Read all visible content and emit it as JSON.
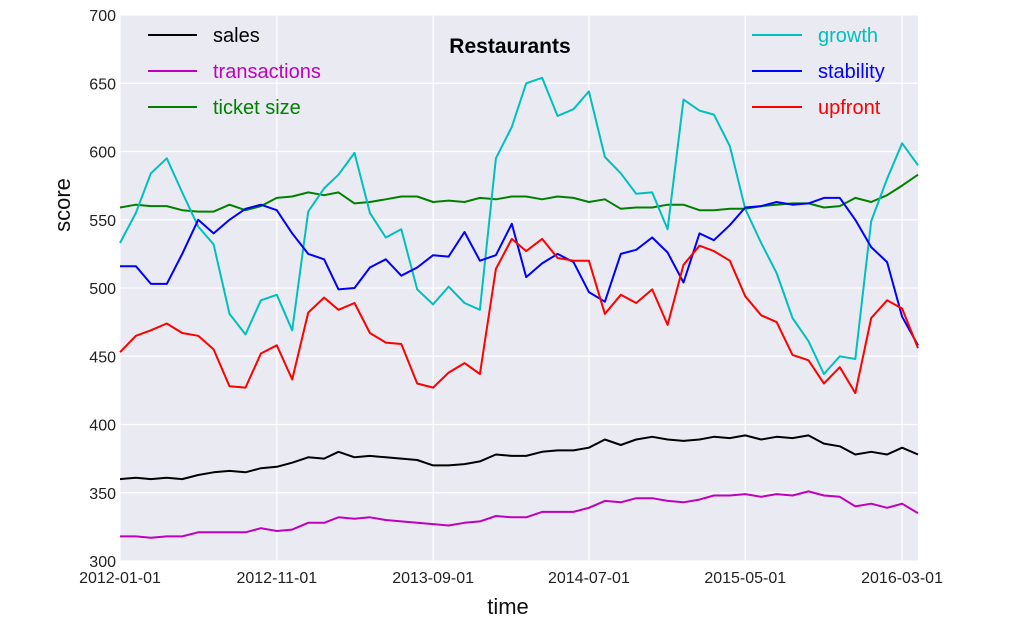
{
  "chart_data": {
    "type": "line",
    "title": "Restaurants",
    "xlabel": "time",
    "ylabel": "score",
    "ylim": [
      300,
      700
    ],
    "yticks": [
      300,
      350,
      400,
      450,
      500,
      550,
      600,
      650,
      700
    ],
    "xticks": [
      "2012-01-01",
      "2012-11-01",
      "2013-09-01",
      "2014-07-01",
      "2015-05-01",
      "2016-03-01"
    ],
    "xlim": [
      "2012-01-01",
      "2016-04-01"
    ],
    "grid": true,
    "background": "#eaeaf2",
    "legend_left": [
      "sales",
      "transactions",
      "ticket size"
    ],
    "legend_right": [
      "growth",
      "stability",
      "upfront"
    ],
    "series": [
      {
        "name": "sales",
        "color": "#000000",
        "x": [
          "2012-01-01",
          "2012-02-01",
          "2012-03-01",
          "2012-04-01",
          "2012-05-01",
          "2012-06-01",
          "2012-07-01",
          "2012-08-01",
          "2012-09-01",
          "2012-10-01",
          "2012-11-01",
          "2012-12-01",
          "2013-01-01",
          "2013-02-01",
          "2013-03-01",
          "2013-04-01",
          "2013-05-01",
          "2013-06-01",
          "2013-07-01",
          "2013-08-01",
          "2013-09-01",
          "2013-10-01",
          "2013-11-01",
          "2013-12-01",
          "2014-01-01",
          "2014-02-01",
          "2014-03-01",
          "2014-04-01",
          "2014-05-01",
          "2014-06-01",
          "2014-07-01",
          "2014-08-01",
          "2014-09-01",
          "2014-10-01",
          "2014-11-01",
          "2014-12-01",
          "2015-01-01",
          "2015-02-01",
          "2015-03-01",
          "2015-04-01",
          "2015-05-01",
          "2015-06-01",
          "2015-07-01",
          "2015-08-01",
          "2015-09-01",
          "2015-10-01",
          "2015-11-01",
          "2015-12-01",
          "2016-01-01",
          "2016-02-01",
          "2016-03-01",
          "2016-04-01"
        ],
        "values": [
          360,
          361,
          360,
          361,
          360,
          363,
          365,
          366,
          365,
          368,
          369,
          372,
          376,
          375,
          380,
          376,
          377,
          376,
          375,
          374,
          370,
          370,
          371,
          373,
          378,
          377,
          377,
          380,
          381,
          381,
          383,
          389,
          385,
          389,
          391,
          389,
          388,
          389,
          391,
          390,
          392,
          389,
          391,
          390,
          392,
          386,
          384,
          378,
          380,
          378,
          383,
          378
        ]
      },
      {
        "name": "transactions",
        "color": "#bf00bf",
        "x": [
          "2012-01-01",
          "2012-02-01",
          "2012-03-01",
          "2012-04-01",
          "2012-05-01",
          "2012-06-01",
          "2012-07-01",
          "2012-08-01",
          "2012-09-01",
          "2012-10-01",
          "2012-11-01",
          "2012-12-01",
          "2013-01-01",
          "2013-02-01",
          "2013-03-01",
          "2013-04-01",
          "2013-05-01",
          "2013-06-01",
          "2013-07-01",
          "2013-08-01",
          "2013-09-01",
          "2013-10-01",
          "2013-11-01",
          "2013-12-01",
          "2014-01-01",
          "2014-02-01",
          "2014-03-01",
          "2014-04-01",
          "2014-05-01",
          "2014-06-01",
          "2014-07-01",
          "2014-08-01",
          "2014-09-01",
          "2014-10-01",
          "2014-11-01",
          "2014-12-01",
          "2015-01-01",
          "2015-02-01",
          "2015-03-01",
          "2015-04-01",
          "2015-05-01",
          "2015-06-01",
          "2015-07-01",
          "2015-08-01",
          "2015-09-01",
          "2015-10-01",
          "2015-11-01",
          "2015-12-01",
          "2016-01-01",
          "2016-02-01",
          "2016-03-01",
          "2016-04-01"
        ],
        "values": [
          318,
          318,
          317,
          318,
          318,
          321,
          321,
          321,
          321,
          324,
          322,
          323,
          328,
          328,
          332,
          331,
          332,
          330,
          329,
          328,
          327,
          326,
          328,
          329,
          333,
          332,
          332,
          336,
          336,
          336,
          339,
          344,
          343,
          346,
          346,
          344,
          343,
          345,
          348,
          348,
          349,
          347,
          349,
          348,
          351,
          348,
          347,
          340,
          342,
          339,
          342,
          335
        ]
      },
      {
        "name": "ticket size",
        "color": "#008000",
        "x": [
          "2012-01-01",
          "2012-02-01",
          "2012-03-01",
          "2012-04-01",
          "2012-05-01",
          "2012-06-01",
          "2012-07-01",
          "2012-08-01",
          "2012-09-01",
          "2012-10-01",
          "2012-11-01",
          "2012-12-01",
          "2013-01-01",
          "2013-02-01",
          "2013-03-01",
          "2013-04-01",
          "2013-05-01",
          "2013-06-01",
          "2013-07-01",
          "2013-08-01",
          "2013-09-01",
          "2013-10-01",
          "2013-11-01",
          "2013-12-01",
          "2014-01-01",
          "2014-02-01",
          "2014-03-01",
          "2014-04-01",
          "2014-05-01",
          "2014-06-01",
          "2014-07-01",
          "2014-08-01",
          "2014-09-01",
          "2014-10-01",
          "2014-11-01",
          "2014-12-01",
          "2015-01-01",
          "2015-02-01",
          "2015-03-01",
          "2015-04-01",
          "2015-05-01",
          "2015-06-01",
          "2015-07-01",
          "2015-08-01",
          "2015-09-01",
          "2015-10-01",
          "2015-11-01",
          "2015-12-01",
          "2016-01-01",
          "2016-02-01",
          "2016-03-01",
          "2016-04-01"
        ],
        "values": [
          559,
          561,
          560,
          560,
          557,
          556,
          556,
          561,
          557,
          560,
          566,
          567,
          570,
          568,
          570,
          562,
          563,
          565,
          567,
          567,
          563,
          564,
          563,
          566,
          565,
          567,
          567,
          565,
          567,
          566,
          563,
          565,
          558,
          559,
          559,
          561,
          561,
          557,
          557,
          558,
          558,
          560,
          561,
          562,
          562,
          559,
          560,
          566,
          563,
          568,
          575,
          583
        ]
      },
      {
        "name": "growth",
        "color": "#00bfbf",
        "x": [
          "2012-01-01",
          "2012-02-01",
          "2012-03-01",
          "2012-04-01",
          "2012-05-01",
          "2012-06-01",
          "2012-07-01",
          "2012-08-01",
          "2012-09-01",
          "2012-10-01",
          "2012-11-01",
          "2012-12-01",
          "2013-01-01",
          "2013-02-01",
          "2013-03-01",
          "2013-04-01",
          "2013-05-01",
          "2013-06-01",
          "2013-07-01",
          "2013-08-01",
          "2013-09-01",
          "2013-10-01",
          "2013-11-01",
          "2013-12-01",
          "2014-01-01",
          "2014-02-01",
          "2014-03-01",
          "2014-04-01",
          "2014-05-01",
          "2014-06-01",
          "2014-07-01",
          "2014-08-01",
          "2014-09-01",
          "2014-10-01",
          "2014-11-01",
          "2014-12-01",
          "2015-01-01",
          "2015-02-01",
          "2015-03-01",
          "2015-04-01",
          "2015-05-01",
          "2015-06-01",
          "2015-07-01",
          "2015-08-01",
          "2015-09-01",
          "2015-10-01",
          "2015-11-01",
          "2015-12-01",
          "2016-01-01",
          "2016-02-01",
          "2016-03-01",
          "2016-04-01"
        ],
        "values": [
          533,
          555,
          584,
          595,
          570,
          545,
          532,
          481,
          466,
          491,
          495,
          469,
          556,
          573,
          583,
          599,
          555,
          537,
          543,
          499,
          488,
          501,
          489,
          484,
          595,
          618,
          650,
          654,
          626,
          631,
          644,
          596,
          584,
          569,
          570,
          543,
          638,
          630,
          627,
          604,
          558,
          533,
          511,
          478,
          461,
          437,
          450,
          448,
          549,
          580,
          606,
          590
        ]
      },
      {
        "name": "stability",
        "color": "#0000ff",
        "x": [
          "2012-01-01",
          "2012-02-01",
          "2012-03-01",
          "2012-04-01",
          "2012-05-01",
          "2012-06-01",
          "2012-07-01",
          "2012-08-01",
          "2012-09-01",
          "2012-10-01",
          "2012-11-01",
          "2012-12-01",
          "2013-01-01",
          "2013-02-01",
          "2013-03-01",
          "2013-04-01",
          "2013-05-01",
          "2013-06-01",
          "2013-07-01",
          "2013-08-01",
          "2013-09-01",
          "2013-10-01",
          "2013-11-01",
          "2013-12-01",
          "2014-01-01",
          "2014-02-01",
          "2014-03-01",
          "2014-04-01",
          "2014-05-01",
          "2014-06-01",
          "2014-07-01",
          "2014-08-01",
          "2014-09-01",
          "2014-10-01",
          "2014-11-01",
          "2014-12-01",
          "2015-01-01",
          "2015-02-01",
          "2015-03-01",
          "2015-04-01",
          "2015-05-01",
          "2015-06-01",
          "2015-07-01",
          "2015-08-01",
          "2015-09-01",
          "2015-10-01",
          "2015-11-01",
          "2015-12-01",
          "2016-01-01",
          "2016-02-01",
          "2016-03-01",
          "2016-04-01"
        ],
        "values": [
          516,
          516,
          503,
          503,
          525,
          550,
          540,
          550,
          558,
          561,
          557,
          540,
          525,
          521,
          499,
          500,
          515,
          521,
          509,
          515,
          524,
          523,
          541,
          520,
          524,
          547,
          508,
          518,
          525,
          519,
          497,
          490,
          525,
          528,
          537,
          526,
          504,
          540,
          535,
          546,
          559,
          560,
          563,
          561,
          562,
          566,
          566,
          550,
          530,
          519,
          479,
          458
        ]
      },
      {
        "name": "upfront",
        "color": "#ff0000",
        "x": [
          "2012-01-01",
          "2012-02-01",
          "2012-03-01",
          "2012-04-01",
          "2012-05-01",
          "2012-06-01",
          "2012-07-01",
          "2012-08-01",
          "2012-09-01",
          "2012-10-01",
          "2012-11-01",
          "2012-12-01",
          "2013-01-01",
          "2013-02-01",
          "2013-03-01",
          "2013-04-01",
          "2013-05-01",
          "2013-06-01",
          "2013-07-01",
          "2013-08-01",
          "2013-09-01",
          "2013-10-01",
          "2013-11-01",
          "2013-12-01",
          "2014-01-01",
          "2014-02-01",
          "2014-03-01",
          "2014-04-01",
          "2014-05-01",
          "2014-06-01",
          "2014-07-01",
          "2014-08-01",
          "2014-09-01",
          "2014-10-01",
          "2014-11-01",
          "2014-12-01",
          "2015-01-01",
          "2015-02-01",
          "2015-03-01",
          "2015-04-01",
          "2015-05-01",
          "2015-06-01",
          "2015-07-01",
          "2015-08-01",
          "2015-09-01",
          "2015-10-01",
          "2015-11-01",
          "2015-12-01",
          "2016-01-01",
          "2016-02-01",
          "2016-03-01",
          "2016-04-01"
        ],
        "values": [
          453,
          465,
          469,
          474,
          467,
          465,
          455,
          428,
          427,
          452,
          458,
          433,
          482,
          493,
          484,
          489,
          467,
          460,
          459,
          430,
          427,
          438,
          445,
          437,
          514,
          536,
          527,
          536,
          522,
          520,
          520,
          481,
          495,
          489,
          499,
          473,
          517,
          531,
          527,
          520,
          494,
          480,
          475,
          451,
          447,
          430,
          442,
          423,
          478,
          491,
          485,
          456
        ]
      }
    ]
  }
}
